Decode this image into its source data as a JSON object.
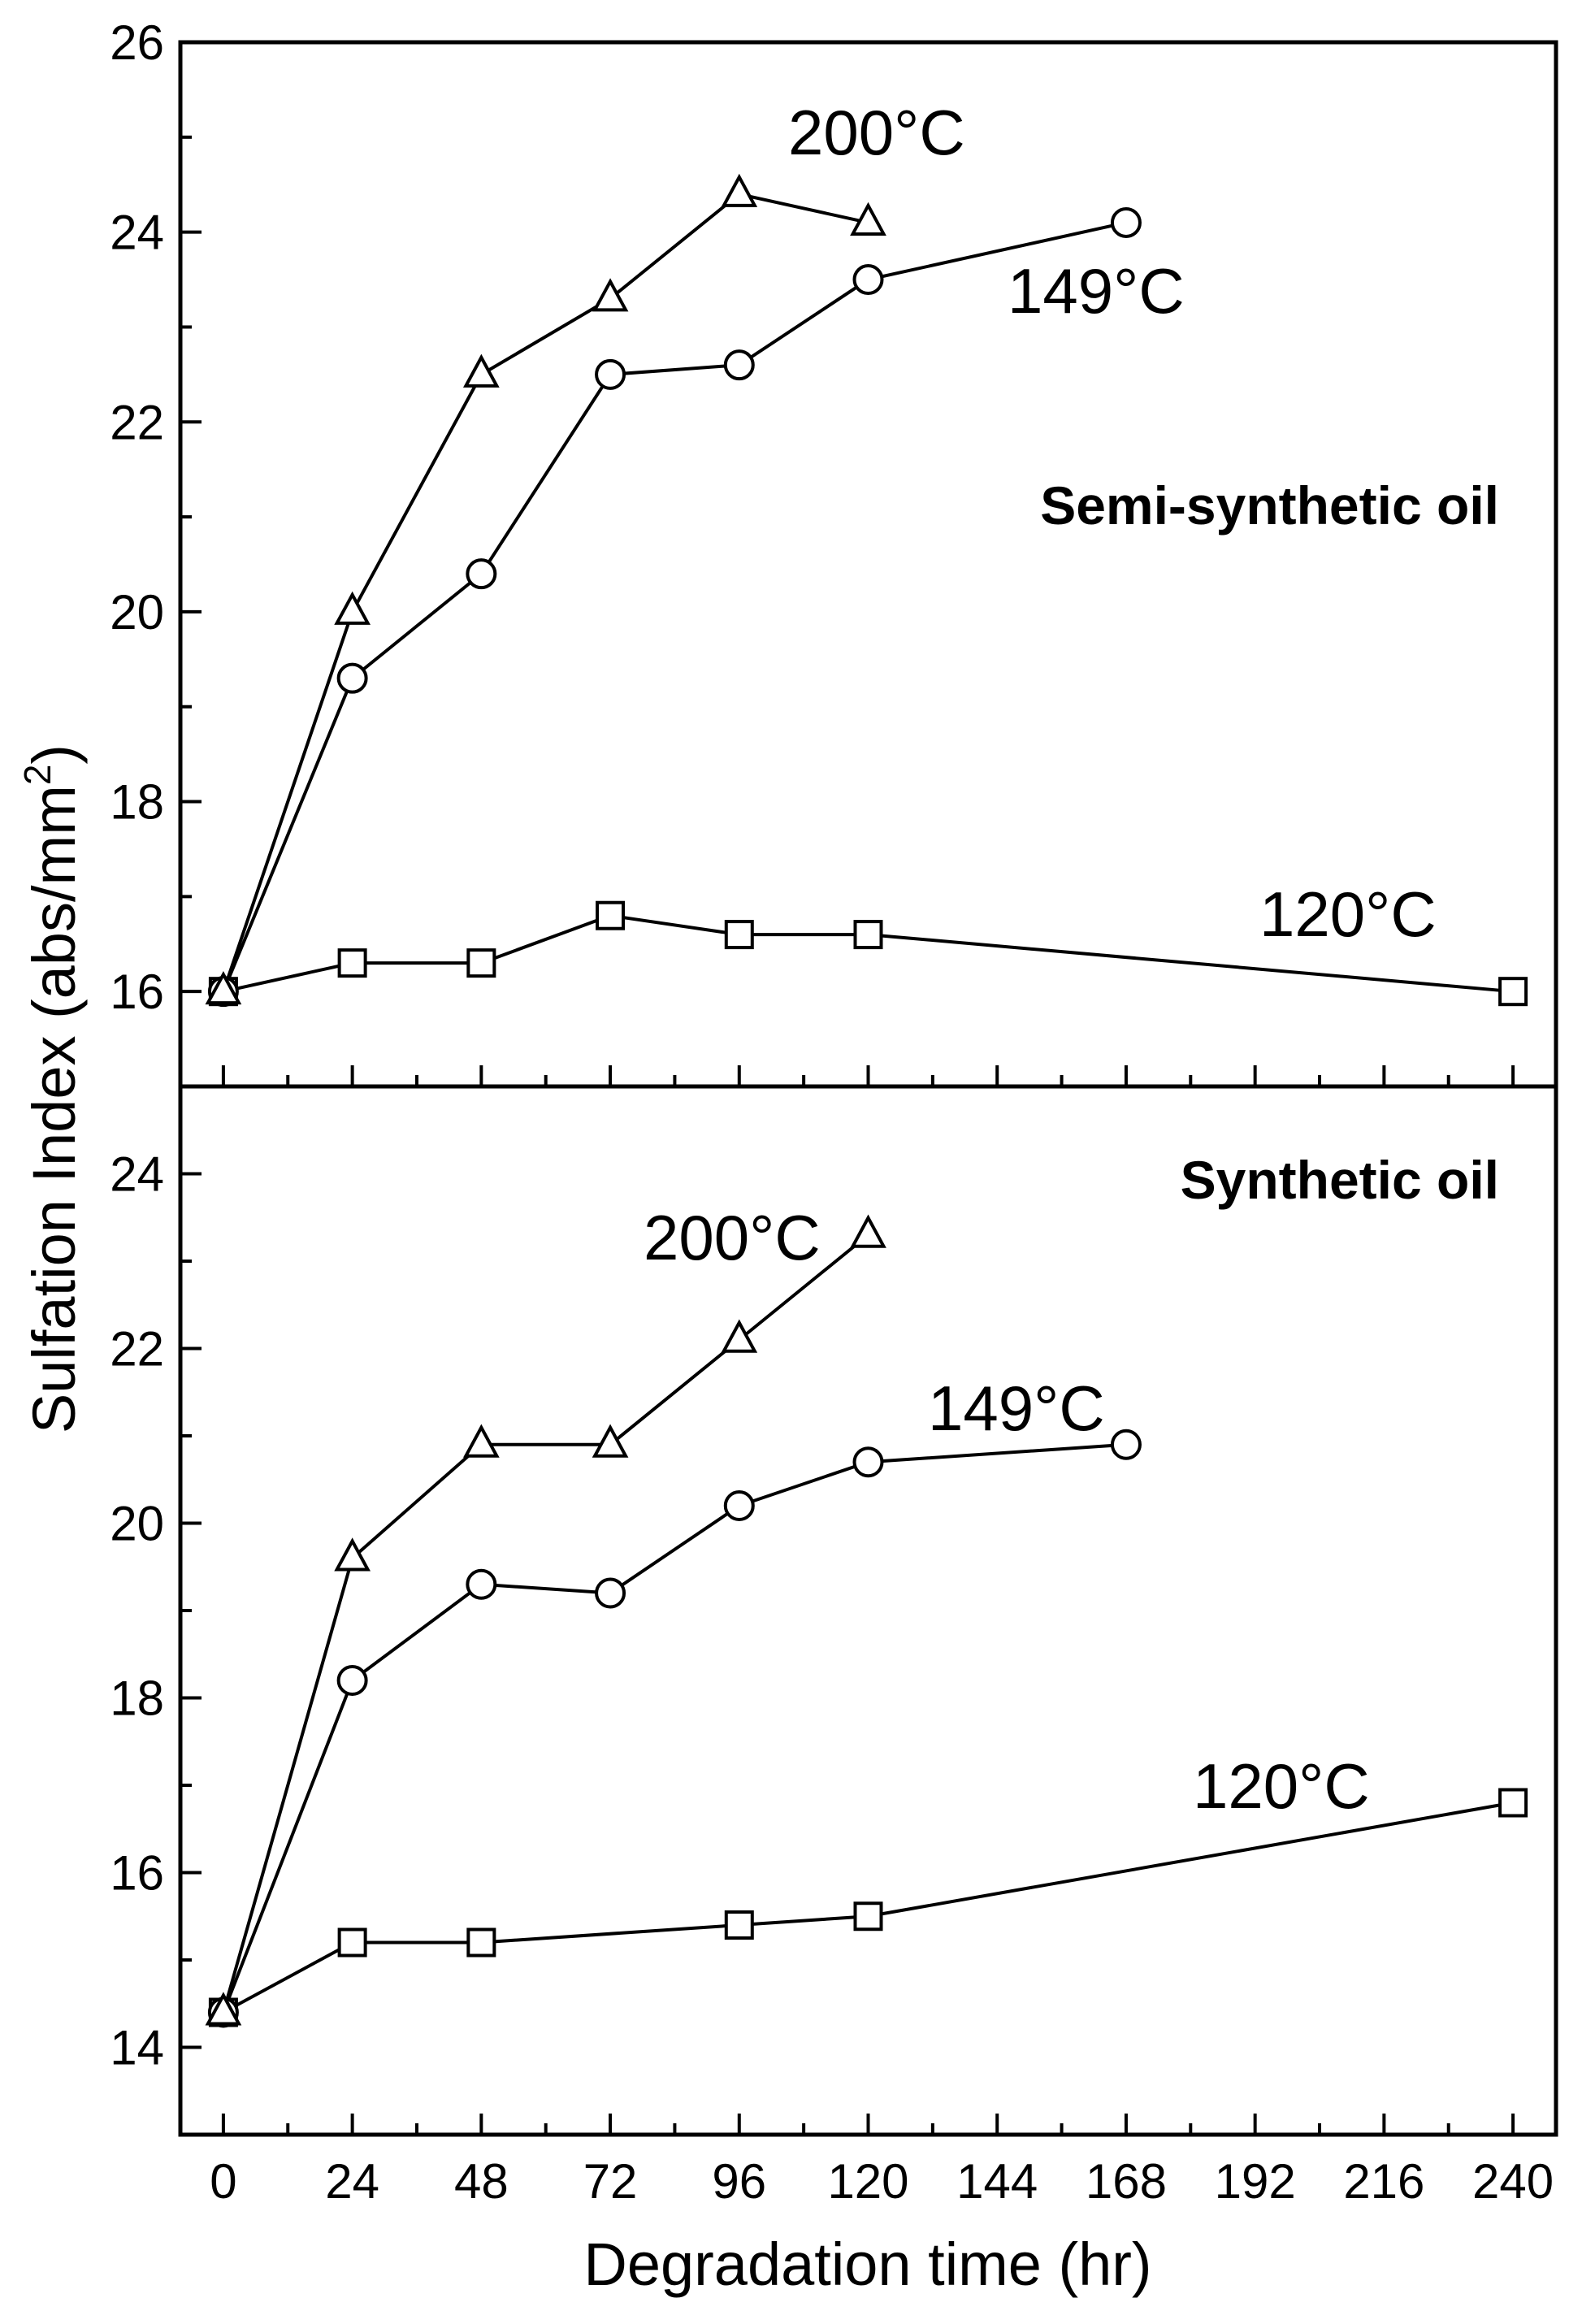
{
  "chart_data": [
    {
      "type": "line",
      "title": "Semi-synthetic oil",
      "xlabel": "Degradation time (hr)",
      "ylabel": "Sulfation Index (abs/mm²)",
      "xlim": [
        -8,
        248
      ],
      "ylim": [
        15,
        26
      ],
      "x_ticks": [
        0,
        24,
        48,
        72,
        96,
        120,
        144,
        168,
        192,
        216,
        240
      ],
      "y_ticks": [
        16,
        18,
        20,
        22,
        24,
        26
      ],
      "grid": false,
      "series": [
        {
          "name": "200°C",
          "marker": "triangle",
          "x": [
            0,
            24,
            48,
            72,
            96,
            120
          ],
          "y": [
            16.0,
            20.0,
            22.5,
            23.3,
            24.4,
            24.1
          ]
        },
        {
          "name": "149°C",
          "marker": "circle",
          "x": [
            0,
            24,
            48,
            72,
            96,
            120,
            168
          ],
          "y": [
            16.0,
            19.3,
            20.4,
            22.5,
            22.6,
            23.5,
            24.1
          ]
        },
        {
          "name": "120°C",
          "marker": "square",
          "x": [
            0,
            24,
            48,
            72,
            96,
            120,
            240
          ],
          "y": [
            16.0,
            16.3,
            16.3,
            16.8,
            16.6,
            16.6,
            16.0
          ]
        }
      ],
      "annotations": [
        "200°C",
        "149°C",
        "120°C"
      ]
    },
    {
      "type": "line",
      "title": "Synthetic oil",
      "xlabel": "Degradation time (hr)",
      "ylabel": "Sulfation Index (abs/mm²)",
      "xlim": [
        -8,
        248
      ],
      "ylim": [
        13,
        25
      ],
      "x_ticks": [
        0,
        24,
        48,
        72,
        96,
        120,
        144,
        168,
        192,
        216,
        240
      ],
      "y_ticks": [
        14,
        16,
        18,
        20,
        22,
        24
      ],
      "grid": false,
      "series": [
        {
          "name": "200°C",
          "marker": "triangle",
          "x": [
            0,
            24,
            48,
            72,
            96,
            120
          ],
          "y": [
            14.4,
            19.6,
            20.9,
            20.9,
            22.1,
            23.3
          ]
        },
        {
          "name": "149°C",
          "marker": "circle",
          "x": [
            0,
            24,
            48,
            72,
            96,
            120,
            168
          ],
          "y": [
            14.4,
            18.2,
            19.3,
            19.2,
            20.2,
            20.7,
            20.9
          ]
        },
        {
          "name": "120°C",
          "marker": "square",
          "x": [
            0,
            24,
            48,
            96,
            120,
            240
          ],
          "y": [
            14.4,
            15.2,
            15.2,
            15.4,
            15.5,
            16.8
          ]
        }
      ],
      "annotations": [
        "200°C",
        "149°C",
        "120°C"
      ]
    }
  ],
  "shared": {
    "xlabel": "Degradation time (hr)",
    "ylabel_main": "Sulfation Index (abs/mm",
    "ylabel_sup": "2",
    "ylabel_end": ")"
  }
}
